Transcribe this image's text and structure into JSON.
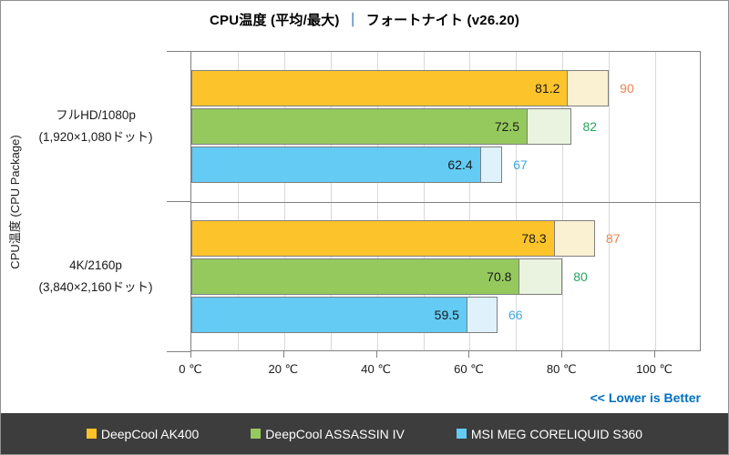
{
  "title": {
    "left": "CPU温度 (平均/最大)",
    "separator": "｜",
    "right": "フォートナイト (v26.20)"
  },
  "y_axis_label": "CPU温度 (CPU Package)",
  "note": "<< Lower is Better",
  "colors": {
    "title_separator": "#2E75B6",
    "note_blue": "#0070C0",
    "axis_line": "#808080",
    "gridline": "#d9d9d9",
    "legend_background": "#3d3d3d",
    "legend_text": "#ffffff",
    "avg_value_text": "#1a1a1a"
  },
  "chart_data": {
    "type": "bar",
    "orientation": "horizontal",
    "title": "CPU温度 (平均/最大)｜フォートナイト (v26.20)",
    "value_unit": "℃",
    "grid": true,
    "legend_position": "bottom",
    "axis": {
      "min": 0,
      "max": 110,
      "tick_step": 20,
      "grid_step": 10,
      "tick_values": [
        0,
        20,
        40,
        60,
        80,
        100
      ],
      "tick_labels": [
        "0 ℃",
        "20 ℃",
        "40 ℃",
        "60 ℃",
        "80 ℃",
        "100 ℃"
      ]
    },
    "categories": [
      {
        "label": "フルHD/1080p",
        "sublabel": "(1,920×1,080ドット)"
      },
      {
        "label": "4K/2160p",
        "sublabel": "(3,840×2,160ドット)"
      }
    ],
    "series": [
      {
        "name": "DeepCool AK400",
        "avg": [
          81.2,
          78.3
        ],
        "max": [
          90,
          87
        ],
        "color": "#FCC32B",
        "light_color": "#FAF0D2",
        "max_label_color": "#EF8250"
      },
      {
        "name": "DeepCool ASSASSIN IV",
        "avg": [
          72.5,
          70.8
        ],
        "max": [
          82,
          80
        ],
        "color": "#95C95E",
        "light_color": "#EAF3DF",
        "max_label_color": "#27A35F"
      },
      {
        "name": "MSI MEG CORELIQUID S360",
        "avg": [
          62.4,
          59.5
        ],
        "max": [
          67,
          66
        ],
        "color": "#63CBF4",
        "light_color": "#DFF2FB",
        "max_label_color": "#3FA9DC"
      }
    ]
  }
}
